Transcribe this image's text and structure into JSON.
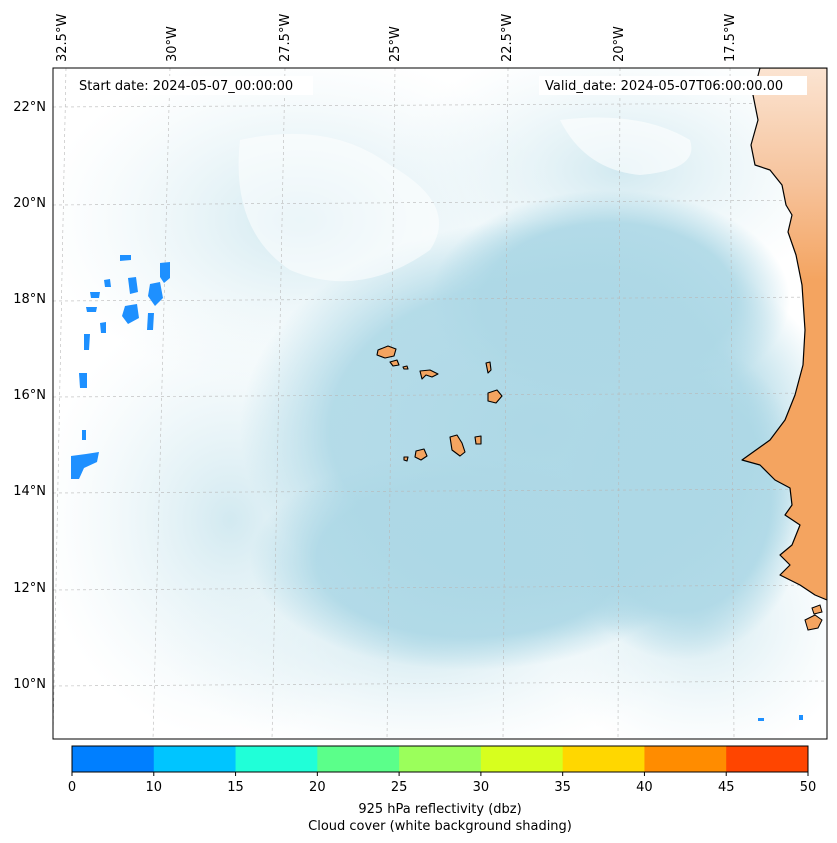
{
  "header": {
    "start_date": "Start date: 2024-05-07_00:00:00",
    "valid_date": "Valid_date: 2024-05-07T06:00:00.00"
  },
  "map": {
    "region": "Cape Verde / West African coast",
    "lon_labels": [
      "32.5°W",
      "30°W",
      "27.5°W",
      "25°W",
      "22.5°W",
      "20°W",
      "17.5°W"
    ],
    "lat_labels": [
      "22°N",
      "20°N",
      "18°N",
      "16°N",
      "14°N",
      "12°N",
      "10°N"
    ],
    "grid": true,
    "colors": {
      "ocean_cloud_light": "#e8f4f8",
      "ocean_cloud_mid": "#cfe8ef",
      "ocean_cloud_dense": "#add8e6",
      "land": "#f4a460",
      "land_light": "#f8c9a0",
      "reflectivity_blue": "#1e90ff",
      "coastline": "#000000"
    }
  },
  "colorbar": {
    "ticks": [
      "0",
      "10",
      "15",
      "20",
      "25",
      "30",
      "35",
      "40",
      "45",
      "50"
    ],
    "colors": [
      "#007fff",
      "#00c5ff",
      "#20ffd8",
      "#5bff8a",
      "#9bff5b",
      "#d7ff1e",
      "#ffd700",
      "#ff8c00",
      "#ff4500"
    ],
    "label_line1": "925 hPa reflectivity (dbz)",
    "label_line2": "Cloud cover (white background shading)"
  }
}
